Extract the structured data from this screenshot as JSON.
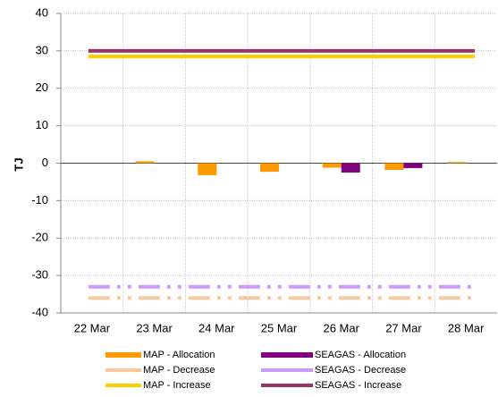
{
  "chart_data": {
    "type": "combo",
    "y_label": "TJ",
    "categories": [
      "22 Mar",
      "23 Mar",
      "24 Mar",
      "25 Mar",
      "26 Mar",
      "27 Mar",
      "28 Mar"
    ],
    "ylim": [
      -40,
      40
    ],
    "yticks": [
      -40,
      -30,
      -20,
      -10,
      0,
      10,
      20,
      30,
      40
    ],
    "grid": true,
    "series": [
      {
        "name": "MAP - Allocation",
        "type": "bar",
        "color": "#ff9900",
        "values": [
          0,
          0.5,
          -3.2,
          -2.3,
          -1.2,
          -1.8,
          0.3
        ]
      },
      {
        "name": "SEAGAS - Allocation",
        "type": "bar",
        "color": "#800080",
        "values": [
          0,
          0,
          0,
          0,
          -2.5,
          -1.3,
          0
        ]
      },
      {
        "name": "MAP - Decrease",
        "type": "line",
        "line_style": "dash-dot",
        "color": "#fac89e",
        "values": [
          -36,
          -36,
          -36,
          -36,
          -36,
          -36,
          -36
        ]
      },
      {
        "name": "SEAGAS - Decrease",
        "type": "line",
        "line_style": "dash-dot",
        "color": "#cc99ff",
        "values": [
          -33,
          -33,
          -33,
          -33,
          -33,
          -33,
          -33
        ]
      },
      {
        "name": "MAP - Increase",
        "type": "line",
        "line_style": "solid",
        "color": "#ffcc00",
        "values": [
          28.5,
          28.5,
          28.5,
          28.5,
          28.5,
          28.5,
          28.5
        ]
      },
      {
        "name": "SEAGAS - Increase",
        "type": "line",
        "line_style": "solid",
        "color": "#993366",
        "values": [
          30,
          30,
          30,
          30,
          30,
          30,
          30
        ]
      }
    ]
  }
}
